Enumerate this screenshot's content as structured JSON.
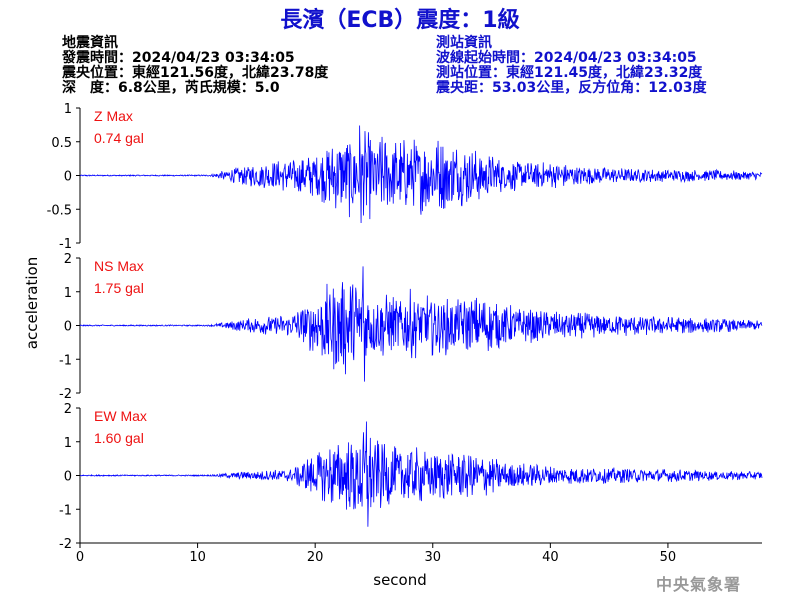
{
  "title": "長濱（ECB）震度：1級",
  "quake_info": {
    "heading": "地震資訊",
    "time": "發震時間：2024/04/23 03:34:05",
    "location": "震央位置：東經121.56度，北緯23.78度",
    "depth_mag": "深　度：6.8公里，芮氏規模：5.0"
  },
  "station_info": {
    "heading": "測站資訊",
    "start_time": "波線起始時間：2024/04/23 03:34:05",
    "location": "測站位置：東經121.45度，北緯23.32度",
    "distance": "震央距：53.03公里，反方位角：12.03度"
  },
  "agency": "中央氣象署",
  "chart_data": [
    {
      "type": "line",
      "label_line1": "Z Max",
      "label_line2": "0.74 gal",
      "ylim": [
        -1,
        1
      ],
      "yticks": [
        -1,
        -0.5,
        0,
        0.5,
        1
      ],
      "ytick_labels": [
        "-1",
        "-0.5",
        "0",
        "0.5",
        "1"
      ],
      "peak": 0.74,
      "color": "#0000ff",
      "envelope_x": [
        0,
        11,
        13,
        15,
        18,
        20,
        22,
        23.5,
        26,
        28,
        30,
        32,
        34,
        36,
        40,
        45,
        50,
        55,
        58
      ],
      "envelope_y": [
        0.01,
        0.01,
        0.12,
        0.2,
        0.25,
        0.35,
        0.55,
        0.72,
        0.6,
        0.55,
        0.62,
        0.5,
        0.4,
        0.25,
        0.2,
        0.12,
        0.1,
        0.08,
        0.06
      ]
    },
    {
      "type": "line",
      "label_line1": "NS Max",
      "label_line2": "1.75 gal",
      "ylim": [
        -2,
        2
      ],
      "yticks": [
        -2,
        -1,
        0,
        1,
        2
      ],
      "ytick_labels": [
        "-2",
        "-1",
        "0",
        "1",
        "2"
      ],
      "peak": 1.75,
      "color": "#0000ff",
      "envelope_x": [
        0,
        11,
        13,
        15,
        18,
        19.5,
        21,
        23,
        25,
        27,
        28,
        30,
        32,
        34,
        37,
        40,
        45,
        50,
        55,
        58
      ],
      "envelope_y": [
        0.02,
        0.02,
        0.15,
        0.25,
        0.35,
        0.8,
        1.3,
        1.6,
        1.0,
        0.9,
        1.1,
        1.0,
        0.8,
        0.9,
        0.6,
        0.45,
        0.35,
        0.28,
        0.2,
        0.15
      ]
    },
    {
      "type": "line",
      "label_line1": "EW Max",
      "label_line2": "1.60 gal",
      "ylim": [
        -2,
        2
      ],
      "yticks": [
        -2,
        -1,
        0,
        1,
        2
      ],
      "ytick_labels": [
        "-2",
        "-1",
        "0",
        "1",
        "2"
      ],
      "peak": 1.6,
      "color": "#0000ff",
      "envelope_x": [
        0,
        11,
        13,
        15,
        18,
        19.5,
        21,
        23,
        24,
        26,
        28,
        30,
        32,
        34,
        36,
        40,
        45,
        50,
        55,
        58
      ],
      "envelope_y": [
        0.02,
        0.02,
        0.1,
        0.15,
        0.2,
        0.6,
        0.9,
        1.2,
        1.5,
        1.0,
        0.9,
        0.8,
        0.75,
        0.7,
        0.45,
        0.3,
        0.25,
        0.2,
        0.15,
        0.12
      ]
    }
  ],
  "xaxis": {
    "xlim": [
      0,
      58
    ],
    "ticks": [
      0,
      10,
      20,
      30,
      40,
      50
    ],
    "tick_labels": [
      "0",
      "10",
      "20",
      "30",
      "40",
      "50"
    ],
    "label": "second"
  },
  "ylabel": "acceleration"
}
